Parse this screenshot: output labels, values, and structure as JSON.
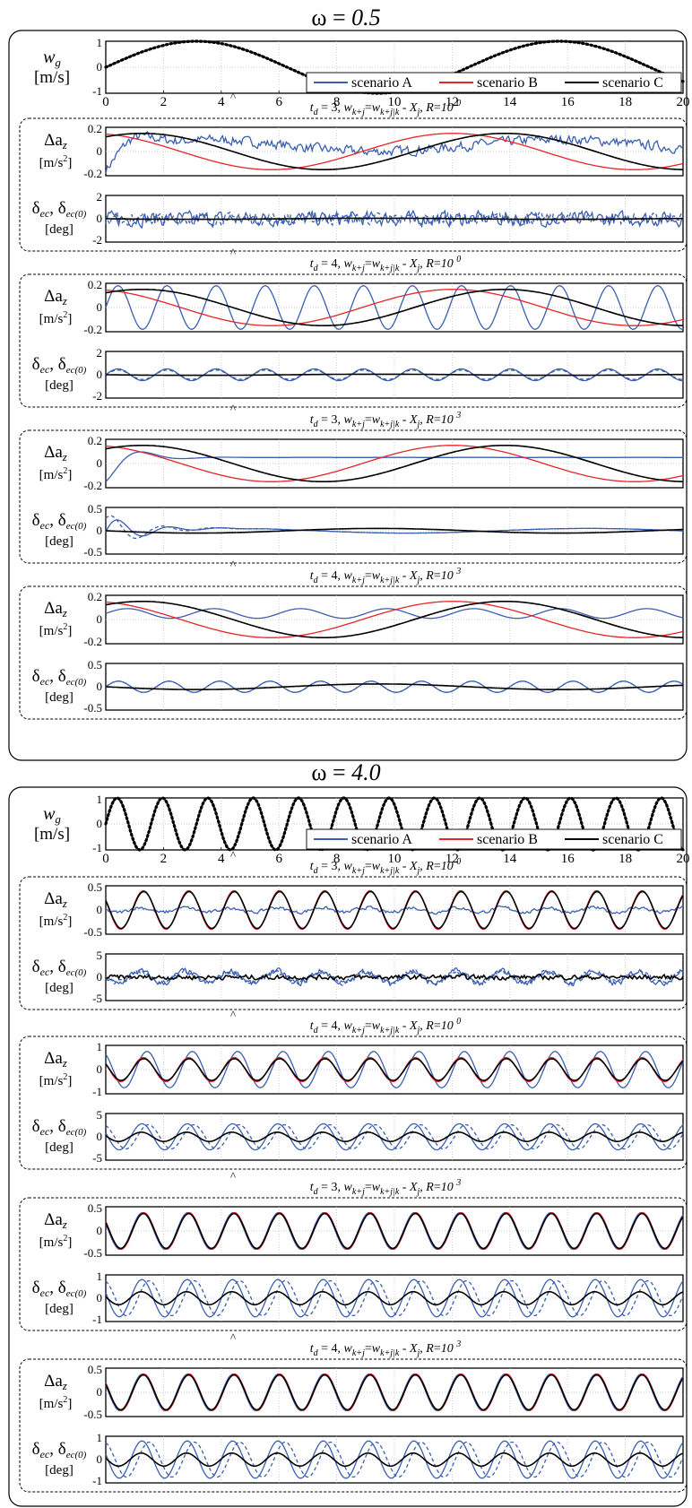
{
  "figure": {
    "sections": [
      {
        "title_prefix": "ω = ",
        "title_value": "0.5"
      },
      {
        "title_prefix": "ω = ",
        "title_value": "4.0"
      }
    ],
    "ylabels": {
      "wg_symbol": "w",
      "wg_sub": "g",
      "wg_unit": "[m/s]",
      "daz_symbol": "Δa",
      "daz_sub": "z",
      "daz_unit_base": "[m/s",
      "daz_unit_sup": "2",
      "daz_unit_end": "]",
      "delta_1": "δ",
      "delta_1_sub": "ec",
      "delta_sep": ", ",
      "delta_2": "δ",
      "delta_2_sub": "ec(0)",
      "delta_unit": "[deg]"
    },
    "legend": [
      "scenario A",
      "scenario B",
      "scenario C"
    ],
    "subplot_titles": [
      {
        "td": "3",
        "R_exp": "0"
      },
      {
        "td": "4",
        "R_exp": "0"
      },
      {
        "td": "3",
        "R_exp": "3"
      },
      {
        "td": "4",
        "R_exp": "3"
      }
    ],
    "subtitle_text": {
      "td_hat": "^",
      "td_t": "t",
      "td_sub": "d",
      "eq": " = ",
      "sep": ", ",
      "w1": "w",
      "w1_sub": "k+j",
      "eq2": "=",
      "w2": "w",
      "w2_sub": "k+j|k",
      "minus": " - ",
      "X": "X",
      "X_sub": "j",
      "R": "R",
      "Req": "=",
      "R_base": "10 "
    }
  },
  "chart_data": [
    {
      "type": "line",
      "section": "ω = 0.5",
      "wg_panel": {
        "xlim": [
          0,
          20
        ],
        "ylim": [
          -1,
          1
        ],
        "xticks": [
          "0",
          "2",
          "4",
          "6",
          "8",
          "10",
          "12",
          "14",
          "16",
          "18",
          "20"
        ],
        "yticks": [
          "1",
          "0",
          "-1"
        ],
        "series": [
          {
            "style": "dotted",
            "amplitude": 1,
            "omega": 0.5
          }
        ],
        "legend_placement": "lower-right",
        "grid": true
      },
      "subplots": [
        {
          "daz": {
            "ylim": [
              -0.2,
              0.2
            ],
            "yticks": [
              "0.2",
              "0",
              "-0.2"
            ],
            "series": [
              {
                "name": "scenario A",
                "amplitude": 0.05,
                "settle": 0.05,
                "noise": 0.035
              },
              {
                "name": "scenario B",
                "amplitude": 0.15,
                "phase_lag": 1.3
              },
              {
                "name": "scenario C",
                "amplitude": 0.15,
                "phase_lag": 2.2
              }
            ]
          },
          "delta": {
            "ylim": [
              -2,
              2
            ],
            "yticks": [
              "2",
              "0",
              "-2"
            ],
            "series": [
              {
                "name": "scenario A",
                "noise": 0.55
              },
              {
                "name": "scenario A",
                "style": "dashed",
                "noise": 0.45
              },
              {
                "name": "scenario C",
                "amplitude": 0.05
              }
            ]
          }
        },
        {
          "daz": {
            "ylim": [
              -0.2,
              0.2
            ],
            "yticks": [
              "0.2",
              "0",
              "-0.2"
            ],
            "series": [
              {
                "name": "scenario A",
                "amplitude": 0.18,
                "oscillation_period": 1.7
              },
              {
                "name": "scenario B",
                "amplitude": 0.15,
                "phase_lag": 1.3
              },
              {
                "name": "scenario C",
                "amplitude": 0.15,
                "phase_lag": 2.2
              }
            ]
          },
          "delta": {
            "ylim": [
              -2,
              2
            ],
            "yticks": [
              "2",
              "0",
              "-2"
            ],
            "series": [
              {
                "name": "scenario A",
                "amplitude": 0.5,
                "oscillation_period": 1.7
              },
              {
                "name": "scenario A",
                "style": "dashed",
                "amplitude": 0.4,
                "oscillation_period": 1.7
              },
              {
                "name": "scenario C",
                "amplitude": 0.05
              }
            ]
          }
        },
        {
          "daz": {
            "ylim": [
              -0.2,
              0.2
            ],
            "yticks": [
              "0.2",
              "0",
              "-0.2"
            ],
            "series": [
              {
                "name": "scenario A",
                "settle": 0.05
              },
              {
                "name": "scenario B",
                "amplitude": 0.15,
                "phase_lag": 1.3
              },
              {
                "name": "scenario C",
                "amplitude": 0.15,
                "phase_lag": 2.2
              }
            ]
          },
          "delta": {
            "ylim": [
              -0.5,
              0.5
            ],
            "yticks": [
              "0.5",
              "0",
              "-0.5"
            ],
            "series": [
              {
                "name": "scenario A",
                "amplitude": 0.05,
                "transient": 0.35
              },
              {
                "name": "scenario A",
                "style": "dashed",
                "amplitude": 0.05,
                "transient": 0.4
              },
              {
                "name": "scenario C",
                "amplitude": 0.05
              }
            ]
          }
        },
        {
          "daz": {
            "ylim": [
              -0.2,
              0.2
            ],
            "yticks": [
              "0.2",
              "0",
              "-0.2"
            ],
            "series": [
              {
                "name": "scenario A",
                "amplitude": 0.04,
                "offset": 0.05,
                "oscillation_period": 3.0
              },
              {
                "name": "scenario B",
                "amplitude": 0.15,
                "phase_lag": 1.3
              },
              {
                "name": "scenario C",
                "amplitude": 0.15,
                "phase_lag": 2.2
              }
            ]
          },
          "delta": {
            "ylim": [
              -0.5,
              0.5
            ],
            "yticks": [
              "0.5",
              "0",
              "-0.5"
            ],
            "series": [
              {
                "name": "scenario A",
                "amplitude": 0.12,
                "oscillation_period": 1.75
              },
              {
                "name": "scenario A",
                "style": "dashed",
                "amplitude": 0.12,
                "oscillation_period": 1.75
              },
              {
                "name": "scenario C",
                "amplitude": 0.06
              }
            ]
          }
        }
      ]
    },
    {
      "type": "line",
      "section": "ω = 4.0",
      "wg_panel": {
        "xlim": [
          0,
          20
        ],
        "ylim": [
          -1,
          1
        ],
        "xticks": [
          "0",
          "2",
          "4",
          "6",
          "8",
          "10",
          "12",
          "14",
          "16",
          "18",
          "20"
        ],
        "yticks": [
          "1",
          "0",
          "-1"
        ],
        "series": [
          {
            "style": "dotted",
            "amplitude": 1,
            "omega": 4.0
          }
        ],
        "legend_placement": "lower-right",
        "grid": true
      },
      "subplots": [
        {
          "daz": {
            "ylim": [
              -0.5,
              0.5
            ],
            "yticks": [
              "0.5",
              "0",
              "-0.5"
            ],
            "series": [
              {
                "name": "scenario A",
                "amplitude": 0.05,
                "noise": 0.03
              },
              {
                "name": "scenario B",
                "amplitude": 0.4,
                "phase_lag": 0.5
              },
              {
                "name": "scenario C",
                "amplitude": 0.38,
                "phase_lag": 0.55
              }
            ]
          },
          "delta": {
            "ylim": [
              -5,
              5
            ],
            "yticks": [
              "5",
              "0",
              "-5"
            ],
            "series": [
              {
                "name": "scenario A",
                "amplitude": 1.3,
                "noise": 0.6
              },
              {
                "name": "scenario A",
                "style": "dashed",
                "amplitude": 1.1,
                "noise": 0.5
              },
              {
                "name": "scenario C",
                "noise": 0.45
              }
            ]
          }
        },
        {
          "daz": {
            "ylim": [
              -1,
              1
            ],
            "yticks": [
              "1",
              "0",
              "-1"
            ],
            "series": [
              {
                "name": "scenario A",
                "amplitude": 0.75,
                "phase_lag": 1.0
              },
              {
                "name": "scenario B",
                "amplitude": 0.5,
                "phase_lag": 0.5
              },
              {
                "name": "scenario C",
                "amplitude": 0.45,
                "phase_lag": 0.55
              }
            ]
          },
          "delta": {
            "ylim": [
              -5,
              5
            ],
            "yticks": [
              "5",
              "0",
              "-5"
            ],
            "series": [
              {
                "name": "scenario A",
                "amplitude": 2.8,
                "phase_lag": 0.3
              },
              {
                "name": "scenario A",
                "style": "dashed",
                "amplitude": 2.6,
                "phase_lag": 1.2
              },
              {
                "name": "scenario C",
                "amplitude": 1.0,
                "phase_lag": 0.2
              }
            ]
          }
        },
        {
          "daz": {
            "ylim": [
              -0.5,
              0.5
            ],
            "yticks": [
              "0.5",
              "0",
              "-0.5"
            ],
            "series": [
              {
                "name": "scenario A",
                "amplitude": 0.38,
                "phase_lag": 0.4
              },
              {
                "name": "scenario B",
                "amplitude": 0.38,
                "phase_lag": 0.55
              },
              {
                "name": "scenario C",
                "amplitude": 0.36,
                "phase_lag": 0.5
              }
            ]
          },
          "delta": {
            "ylim": [
              -1,
              1
            ],
            "yticks": [
              "1",
              "0",
              "-1"
            ],
            "series": [
              {
                "name": "scenario A",
                "amplitude": 0.8,
                "phase_lag": 0.3
              },
              {
                "name": "scenario A",
                "style": "dashed",
                "amplitude": 0.75,
                "phase_lag": 1.3
              },
              {
                "name": "scenario C",
                "amplitude": 0.28,
                "phase_lag": 0.2
              }
            ]
          }
        },
        {
          "daz": {
            "ylim": [
              -0.5,
              0.5
            ],
            "yticks": [
              "0.5",
              "0",
              "-0.5"
            ],
            "series": [
              {
                "name": "scenario A",
                "amplitude": 0.38,
                "phase_lag": 0.4
              },
              {
                "name": "scenario B",
                "amplitude": 0.38,
                "phase_lag": 0.55
              },
              {
                "name": "scenario C",
                "amplitude": 0.36,
                "phase_lag": 0.5
              }
            ]
          },
          "delta": {
            "ylim": [
              -1,
              1
            ],
            "yticks": [
              "1",
              "0",
              "-1"
            ],
            "series": [
              {
                "name": "scenario A",
                "amplitude": 0.8,
                "phase_lag": 0.3
              },
              {
                "name": "scenario A",
                "style": "dashed",
                "amplitude": 0.75,
                "phase_lag": 1.3
              },
              {
                "name": "scenario C",
                "amplitude": 0.28,
                "phase_lag": 0.2
              }
            ]
          }
        }
      ]
    }
  ],
  "colors": {
    "scenario A": "#3a5fb0",
    "scenario B": "#e8232a",
    "scenario C": "#000000"
  }
}
